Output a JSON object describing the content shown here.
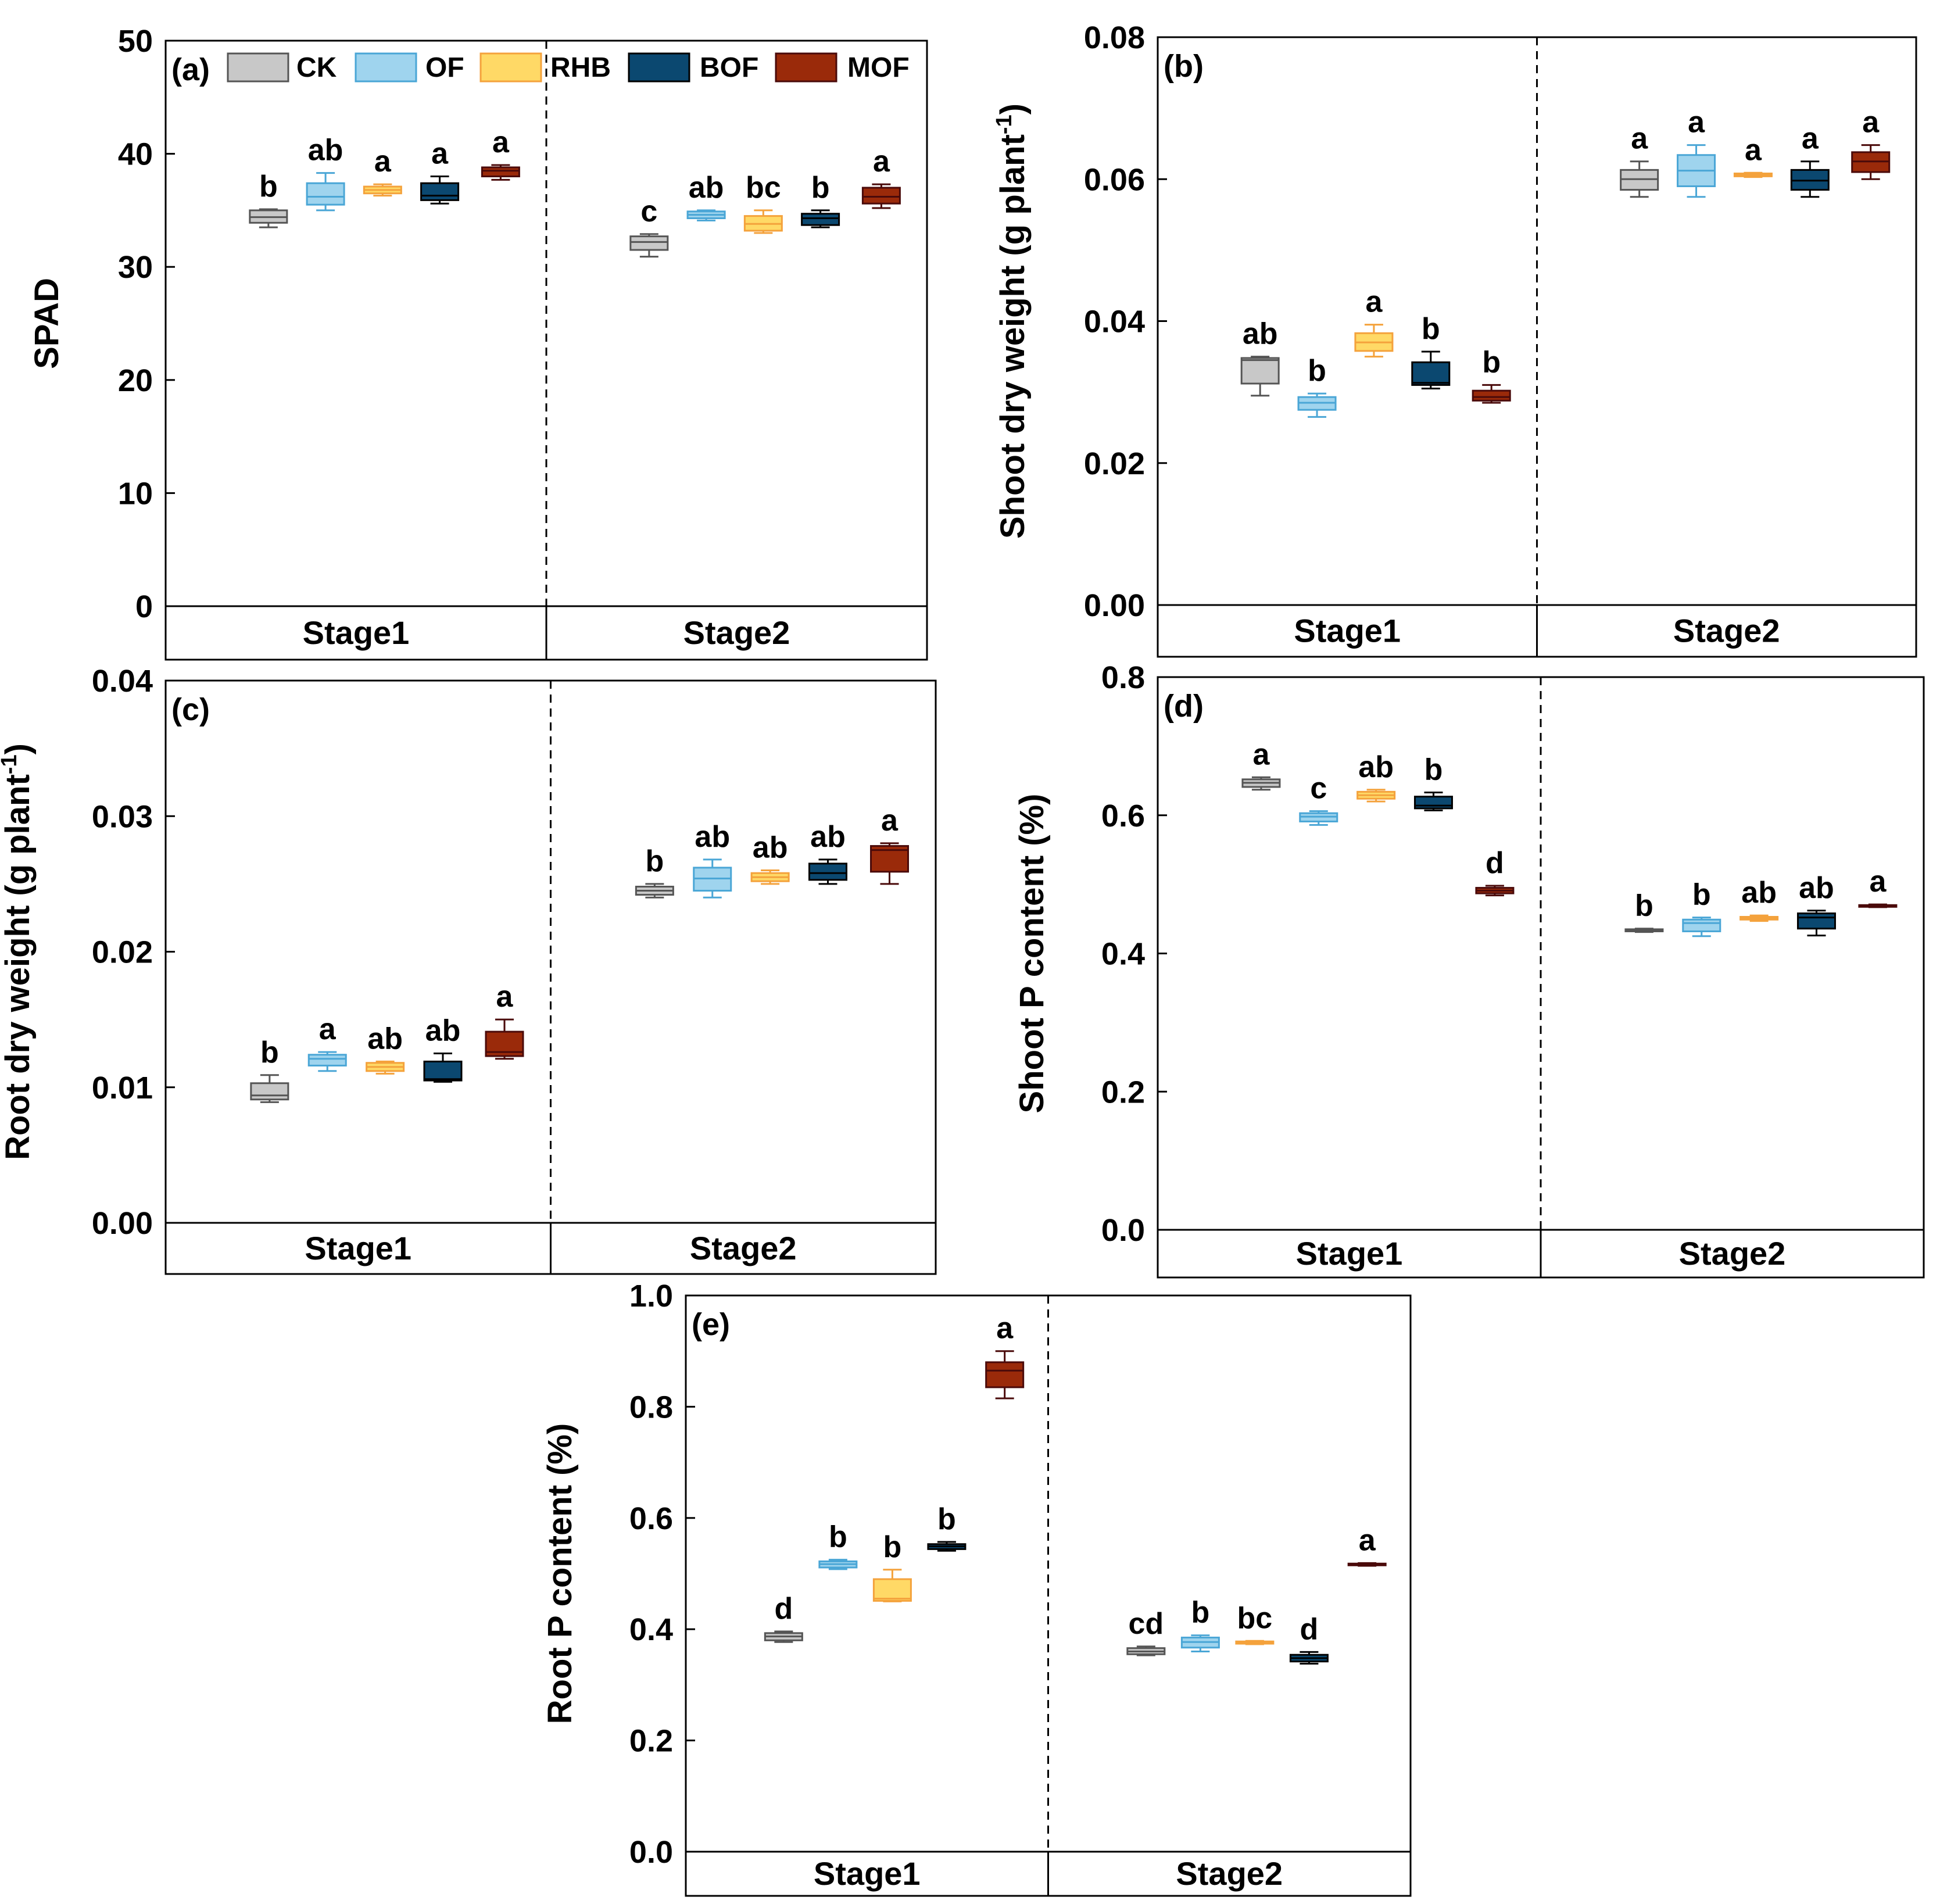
{
  "treatments": [
    "CK",
    "OF",
    "RHB",
    "BOF",
    "MOF"
  ],
  "colors": {
    "CK": {
      "fill": "#c8c8c8",
      "edge": "#555555"
    },
    "OF": {
      "fill": "#9fd4ee",
      "edge": "#4aa6d6"
    },
    "RHB": {
      "fill": "#ffd966",
      "edge": "#f4a23c"
    },
    "BOF": {
      "fill": "#0b4870",
      "edge": "#000000"
    },
    "MOF": {
      "fill": "#9a2a0a",
      "edge": "#4a0a0a"
    }
  },
  "legend": [
    "CK",
    "OF",
    "RHB",
    "BOF",
    "MOF"
  ],
  "chart_data": [
    {
      "panel": "(a)",
      "type": "box",
      "ylabel": "SPAD",
      "ylabel_sup": "",
      "ylim": [
        0,
        50
      ],
      "yticks": [
        "0",
        "10",
        "20",
        "30",
        "40",
        "50"
      ],
      "stages": [
        "Stage1",
        "Stage2"
      ],
      "boxes": [
        {
          "stage": "Stage1",
          "treatment": "CK",
          "min": 33.5,
          "q1": 33.9,
          "median": 34.4,
          "q3": 35.0,
          "max": 35.1,
          "letter": "b"
        },
        {
          "stage": "Stage1",
          "treatment": "OF",
          "min": 35.0,
          "q1": 35.5,
          "median": 36.2,
          "q3": 37.4,
          "max": 38.3,
          "letter": "ab"
        },
        {
          "stage": "Stage1",
          "treatment": "RHB",
          "min": 36.3,
          "q1": 36.5,
          "median": 36.8,
          "q3": 37.1,
          "max": 37.3,
          "letter": "a"
        },
        {
          "stage": "Stage1",
          "treatment": "BOF",
          "min": 35.6,
          "q1": 35.9,
          "median": 36.3,
          "q3": 37.4,
          "max": 38.0,
          "letter": "a"
        },
        {
          "stage": "Stage1",
          "treatment": "MOF",
          "min": 37.7,
          "q1": 38.0,
          "median": 38.5,
          "q3": 38.8,
          "max": 39.0,
          "letter": "a"
        },
        {
          "stage": "Stage2",
          "treatment": "CK",
          "min": 30.9,
          "q1": 31.5,
          "median": 32.2,
          "q3": 32.7,
          "max": 32.9,
          "letter": "c"
        },
        {
          "stage": "Stage2",
          "treatment": "OF",
          "min": 34.1,
          "q1": 34.3,
          "median": 34.6,
          "q3": 34.9,
          "max": 35.0,
          "letter": "ab"
        },
        {
          "stage": "Stage2",
          "treatment": "RHB",
          "min": 33.0,
          "q1": 33.2,
          "median": 33.8,
          "q3": 34.5,
          "max": 35.0,
          "letter": "bc"
        },
        {
          "stage": "Stage2",
          "treatment": "BOF",
          "min": 33.5,
          "q1": 33.7,
          "median": 34.3,
          "q3": 34.7,
          "max": 35.0,
          "letter": "b"
        },
        {
          "stage": "Stage2",
          "treatment": "MOF",
          "min": 35.2,
          "q1": 35.6,
          "median": 36.2,
          "q3": 37.0,
          "max": 37.3,
          "letter": "a"
        }
      ]
    },
    {
      "panel": "(b)",
      "type": "box",
      "ylabel": "Shoot dry weight (g plant",
      "ylabel_sup": "-1",
      "ylabel_tail": ")",
      "ylim": [
        0,
        0.08
      ],
      "yticks": [
        "0.00",
        "0.02",
        "0.04",
        "0.06",
        "0.08"
      ],
      "stages": [
        "Stage1",
        "Stage2"
      ],
      "boxes": [
        {
          "stage": "Stage1",
          "treatment": "CK",
          "min": 0.0295,
          "q1": 0.0312,
          "median": 0.0345,
          "q3": 0.0348,
          "max": 0.035,
          "letter": "ab"
        },
        {
          "stage": "Stage1",
          "treatment": "OF",
          "min": 0.0265,
          "q1": 0.0275,
          "median": 0.0285,
          "q3": 0.0293,
          "max": 0.0298,
          "letter": "b"
        },
        {
          "stage": "Stage1",
          "treatment": "RHB",
          "min": 0.035,
          "q1": 0.0358,
          "median": 0.037,
          "q3": 0.0383,
          "max": 0.0395,
          "letter": "a"
        },
        {
          "stage": "Stage1",
          "treatment": "BOF",
          "min": 0.0305,
          "q1": 0.031,
          "median": 0.0313,
          "q3": 0.0342,
          "max": 0.0357,
          "letter": "b"
        },
        {
          "stage": "Stage1",
          "treatment": "MOF",
          "min": 0.0285,
          "q1": 0.0288,
          "median": 0.0293,
          "q3": 0.0302,
          "max": 0.031,
          "letter": "b"
        },
        {
          "stage": "Stage2",
          "treatment": "CK",
          "min": 0.0575,
          "q1": 0.0585,
          "median": 0.06,
          "q3": 0.0613,
          "max": 0.0625,
          "letter": "a"
        },
        {
          "stage": "Stage2",
          "treatment": "OF",
          "min": 0.0575,
          "q1": 0.059,
          "median": 0.0612,
          "q3": 0.0634,
          "max": 0.0648,
          "letter": "a"
        },
        {
          "stage": "Stage2",
          "treatment": "RHB",
          "min": 0.0603,
          "q1": 0.0604,
          "median": 0.0606,
          "q3": 0.0608,
          "max": 0.0609,
          "letter": "a"
        },
        {
          "stage": "Stage2",
          "treatment": "BOF",
          "min": 0.0575,
          "q1": 0.0585,
          "median": 0.0598,
          "q3": 0.0613,
          "max": 0.0625,
          "letter": "a"
        },
        {
          "stage": "Stage2",
          "treatment": "MOF",
          "min": 0.06,
          "q1": 0.061,
          "median": 0.0625,
          "q3": 0.0638,
          "max": 0.0648,
          "letter": "a"
        }
      ]
    },
    {
      "panel": "(c)",
      "type": "box",
      "ylabel": "Root dry weight (g plant",
      "ylabel_sup": "-1",
      "ylabel_tail": ")",
      "ylim": [
        0,
        0.04
      ],
      "yticks": [
        "0.00",
        "0.01",
        "0.02",
        "0.03",
        "0.04"
      ],
      "stages": [
        "Stage1",
        "Stage2"
      ],
      "boxes": [
        {
          "stage": "Stage1",
          "treatment": "CK",
          "min": 0.0089,
          "q1": 0.0091,
          "median": 0.0094,
          "q3": 0.0103,
          "max": 0.0109,
          "letter": "b"
        },
        {
          "stage": "Stage1",
          "treatment": "OF",
          "min": 0.0112,
          "q1": 0.0116,
          "median": 0.0121,
          "q3": 0.0124,
          "max": 0.0126,
          "letter": "a"
        },
        {
          "stage": "Stage1",
          "treatment": "RHB",
          "min": 0.011,
          "q1": 0.0112,
          "median": 0.0115,
          "q3": 0.0118,
          "max": 0.0119,
          "letter": "ab"
        },
        {
          "stage": "Stage1",
          "treatment": "BOF",
          "min": 0.0104,
          "q1": 0.0105,
          "median": 0.0106,
          "q3": 0.0119,
          "max": 0.0125,
          "letter": "ab"
        },
        {
          "stage": "Stage1",
          "treatment": "MOF",
          "min": 0.0121,
          "q1": 0.0123,
          "median": 0.0126,
          "q3": 0.0141,
          "max": 0.015,
          "letter": "a"
        },
        {
          "stage": "Stage2",
          "treatment": "CK",
          "min": 0.024,
          "q1": 0.0242,
          "median": 0.0245,
          "q3": 0.0248,
          "max": 0.025,
          "letter": "b"
        },
        {
          "stage": "Stage2",
          "treatment": "OF",
          "min": 0.024,
          "q1": 0.0245,
          "median": 0.0254,
          "q3": 0.0262,
          "max": 0.0268,
          "letter": "ab"
        },
        {
          "stage": "Stage2",
          "treatment": "RHB",
          "min": 0.025,
          "q1": 0.0252,
          "median": 0.0255,
          "q3": 0.0258,
          "max": 0.026,
          "letter": "ab"
        },
        {
          "stage": "Stage2",
          "treatment": "BOF",
          "min": 0.025,
          "q1": 0.0253,
          "median": 0.0258,
          "q3": 0.0265,
          "max": 0.0268,
          "letter": "ab"
        },
        {
          "stage": "Stage2",
          "treatment": "MOF",
          "min": 0.025,
          "q1": 0.0259,
          "median": 0.0275,
          "q3": 0.0278,
          "max": 0.028,
          "letter": "a"
        }
      ]
    },
    {
      "panel": "(d)",
      "type": "box",
      "ylabel": "Shoot P content (%)",
      "ylabel_sup": "",
      "ylim": [
        0,
        0.8
      ],
      "yticks": [
        "0.0",
        "0.2",
        "0.4",
        "0.6",
        "0.8"
      ],
      "stages": [
        "Stage1",
        "Stage2"
      ],
      "boxes": [
        {
          "stage": "Stage1",
          "treatment": "CK",
          "min": 0.637,
          "q1": 0.641,
          "median": 0.647,
          "q3": 0.652,
          "max": 0.655,
          "letter": "a"
        },
        {
          "stage": "Stage1",
          "treatment": "OF",
          "min": 0.586,
          "q1": 0.591,
          "median": 0.598,
          "q3": 0.603,
          "max": 0.606,
          "letter": "c"
        },
        {
          "stage": "Stage1",
          "treatment": "RHB",
          "min": 0.62,
          "q1": 0.624,
          "median": 0.629,
          "q3": 0.634,
          "max": 0.637,
          "letter": "ab"
        },
        {
          "stage": "Stage1",
          "treatment": "BOF",
          "min": 0.607,
          "q1": 0.61,
          "median": 0.614,
          "q3": 0.627,
          "max": 0.633,
          "letter": "b"
        },
        {
          "stage": "Stage1",
          "treatment": "MOF",
          "min": 0.484,
          "q1": 0.487,
          "median": 0.491,
          "q3": 0.495,
          "max": 0.498,
          "letter": "d"
        },
        {
          "stage": "Stage2",
          "treatment": "CK",
          "min": 0.431,
          "q1": 0.432,
          "median": 0.433,
          "q3": 0.435,
          "max": 0.436,
          "letter": "b"
        },
        {
          "stage": "Stage2",
          "treatment": "OF",
          "min": 0.425,
          "q1": 0.432,
          "median": 0.444,
          "q3": 0.449,
          "max": 0.452,
          "letter": "b"
        },
        {
          "stage": "Stage2",
          "treatment": "RHB",
          "min": 0.447,
          "q1": 0.449,
          "median": 0.451,
          "q3": 0.453,
          "max": 0.455,
          "letter": "ab"
        },
        {
          "stage": "Stage2",
          "treatment": "BOF",
          "min": 0.426,
          "q1": 0.436,
          "median": 0.452,
          "q3": 0.458,
          "max": 0.462,
          "letter": "ab"
        },
        {
          "stage": "Stage2",
          "treatment": "MOF",
          "min": 0.467,
          "q1": 0.468,
          "median": 0.469,
          "q3": 0.47,
          "max": 0.471,
          "letter": "a"
        }
      ]
    },
    {
      "panel": "(e)",
      "type": "box",
      "ylabel": "Root P content (%)",
      "ylabel_sup": "",
      "ylim": [
        0,
        1.0
      ],
      "yticks": [
        "0.0",
        "0.2",
        "0.4",
        "0.6",
        "0.8",
        "1.0"
      ],
      "stages": [
        "Stage1",
        "Stage2"
      ],
      "boxes": [
        {
          "stage": "Stage1",
          "treatment": "CK",
          "min": 0.377,
          "q1": 0.38,
          "median": 0.387,
          "q3": 0.393,
          "max": 0.396,
          "letter": "d"
        },
        {
          "stage": "Stage1",
          "treatment": "OF",
          "min": 0.508,
          "q1": 0.511,
          "median": 0.517,
          "q3": 0.522,
          "max": 0.525,
          "letter": "b"
        },
        {
          "stage": "Stage1",
          "treatment": "RHB",
          "min": 0.45,
          "q1": 0.451,
          "median": 0.455,
          "q3": 0.49,
          "max": 0.507,
          "letter": "b"
        },
        {
          "stage": "Stage1",
          "treatment": "BOF",
          "min": 0.541,
          "q1": 0.544,
          "median": 0.549,
          "q3": 0.553,
          "max": 0.557,
          "letter": "b"
        },
        {
          "stage": "Stage1",
          "treatment": "MOF",
          "min": 0.815,
          "q1": 0.835,
          "median": 0.865,
          "q3": 0.88,
          "max": 0.9,
          "letter": "a"
        },
        {
          "stage": "Stage2",
          "treatment": "CK",
          "min": 0.353,
          "q1": 0.355,
          "median": 0.36,
          "q3": 0.366,
          "max": 0.369,
          "letter": "cd"
        },
        {
          "stage": "Stage2",
          "treatment": "OF",
          "min": 0.36,
          "q1": 0.367,
          "median": 0.377,
          "q3": 0.385,
          "max": 0.389,
          "letter": "b"
        },
        {
          "stage": "Stage2",
          "treatment": "RHB",
          "min": 0.373,
          "q1": 0.374,
          "median": 0.376,
          "q3": 0.378,
          "max": 0.379,
          "letter": "bc"
        },
        {
          "stage": "Stage2",
          "treatment": "BOF",
          "min": 0.338,
          "q1": 0.342,
          "median": 0.348,
          "q3": 0.354,
          "max": 0.359,
          "letter": "d"
        },
        {
          "stage": "Stage2",
          "treatment": "MOF",
          "min": 0.514,
          "q1": 0.515,
          "median": 0.516,
          "q3": 0.518,
          "max": 0.519,
          "letter": "a"
        }
      ]
    }
  ]
}
